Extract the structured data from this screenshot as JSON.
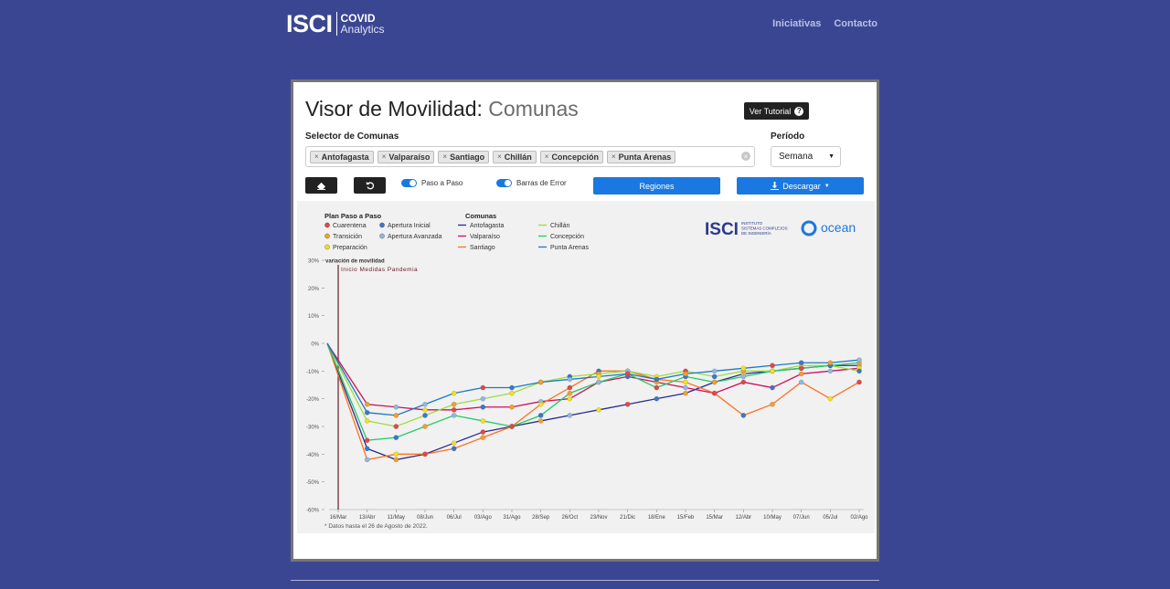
{
  "header": {
    "logo_text": "ISCI",
    "logo_line1": "COVID",
    "logo_line2": "Analytics",
    "nav": [
      "Iniciativas",
      "Contacto"
    ]
  },
  "page": {
    "title_main": "Visor de Movilidad:",
    "title_sub": "Comunas",
    "tutorial_label": "Ver Tutorial",
    "selector_label": "Selector de Comunas",
    "tags": [
      "Antofagasta",
      "Valparaíso",
      "Santiago",
      "Chillán",
      "Concepción",
      "Punta Arenas"
    ],
    "period_label": "Período",
    "period_value": "Semana",
    "toggle_paso": "Paso a Paso",
    "toggle_barras": "Barras de Error",
    "regiones_label": "Regiones",
    "descargar_label": "Descargar",
    "colors": {
      "accent": "#1b78e0",
      "background": "#3b4693"
    }
  },
  "chart_data": {
    "type": "line",
    "ylabel": "variación de movilidad",
    "ylim": [
      -60,
      30
    ],
    "yticks": [
      "30%",
      "20%",
      "10%",
      "0%",
      "-10%",
      "-20%",
      "-30%",
      "-40%",
      "-50%",
      "-60%"
    ],
    "xticks": [
      "16/Mar",
      "13/Abr",
      "11/May",
      "08/Jun",
      "06/Jul",
      "03/Ago",
      "31/Ago",
      "28/Sep",
      "26/Oct",
      "23/Nov",
      "21/Dic",
      "18/Ene",
      "15/Feb",
      "15/Mar",
      "12/Abr",
      "10/May",
      "07/Jun",
      "05/Jul",
      "02/Ago"
    ],
    "annotation": "Inicio Medidas Pandemia",
    "footnote": "* Datos hasta el 26 de Agosto de 2022.",
    "legend_plan_title": "Plan Paso a Paso",
    "legend_plan": [
      {
        "name": "Cuarentena",
        "color": "#e04848"
      },
      {
        "name": "Apertura Inicial",
        "color": "#3a78c8"
      },
      {
        "name": "Transición",
        "color": "#f0a030"
      },
      {
        "name": "Apertura Avanzada",
        "color": "#8fb8e0"
      },
      {
        "name": "Preparación",
        "color": "#f2e020"
      }
    ],
    "legend_comunas_title": "Comunas",
    "legend_comunas": [
      {
        "name": "Antofagasta",
        "color": "#2b2b8c"
      },
      {
        "name": "Chillán",
        "color": "#9ade3c"
      },
      {
        "name": "Valparaíso",
        "color": "#d0105a"
      },
      {
        "name": "Concepción",
        "color": "#22cc66"
      },
      {
        "name": "Santiago",
        "color": "#ff7020"
      },
      {
        "name": "Punta Arenas",
        "color": "#1a78c8"
      }
    ],
    "logo_isci": "ISCI",
    "logo_isci_sub": [
      "INSTITUTO",
      "SISTEMAS COMPLEJOS",
      "DE INGENIERÍA"
    ],
    "logo_ocean": "ocean",
    "series": [
      {
        "name": "Antofagasta",
        "values": [
          0,
          -38,
          -42,
          -40,
          -36,
          -32,
          -30,
          -28,
          -26,
          -24,
          -22,
          -20,
          -18,
          -14,
          -11,
          -10,
          -9,
          -8,
          -8
        ]
      },
      {
        "name": "Valparaíso",
        "values": [
          0,
          -22,
          -23,
          -24,
          -24,
          -23,
          -23,
          -21,
          -20,
          -14,
          -12,
          -14,
          -16,
          -18,
          -14,
          -16,
          -11,
          -10,
          -9
        ]
      },
      {
        "name": "Santiago",
        "values": [
          0,
          -42,
          -40,
          -40,
          -38,
          -34,
          -30,
          -22,
          -16,
          -10,
          -10,
          -13,
          -14,
          -18,
          -26,
          -22,
          -14,
          -20,
          -14
        ]
      },
      {
        "name": "Chillán",
        "values": [
          0,
          -28,
          -30,
          -26,
          -22,
          -20,
          -18,
          -14,
          -12,
          -11,
          -10,
          -12,
          -10,
          -12,
          -10,
          -10,
          -8,
          -8,
          -10
        ]
      },
      {
        "name": "Concepción",
        "values": [
          0,
          -35,
          -34,
          -30,
          -26,
          -28,
          -30,
          -26,
          -18,
          -14,
          -11,
          -16,
          -12,
          -14,
          -12,
          -10,
          -9,
          -8,
          -7
        ]
      },
      {
        "name": "Punta Arenas",
        "values": [
          0,
          -25,
          -26,
          -22,
          -18,
          -16,
          -16,
          -14,
          -13,
          -12,
          -11,
          -13,
          -11,
          -10,
          -9,
          -8,
          -7,
          -7,
          -6
        ]
      }
    ]
  }
}
